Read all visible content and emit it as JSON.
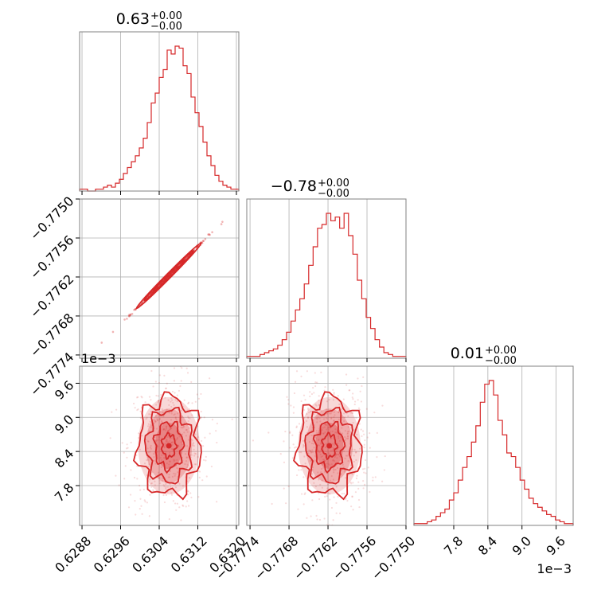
{
  "chart_data": {
    "type": "corner",
    "color": "#d62728",
    "grid": true,
    "parameters": [
      {
        "title": "0.63",
        "title_plus": "+0.00",
        "title_minus": "−0.00",
        "range": [
          0.62875,
          0.63205
        ],
        "ticks": [
          0.6288,
          0.6296,
          0.6304,
          0.6312,
          0.632
        ],
        "tick_labels": [
          "0.6288",
          "0.6296",
          "0.6304",
          "0.6312",
          "0.6320"
        ],
        "offset_text": "",
        "mean": 0.6306,
        "std": 0.00032,
        "hist_values": [
          1,
          1,
          0,
          0,
          1,
          1,
          2,
          3,
          2,
          4,
          6,
          9,
          12,
          15,
          18,
          22,
          27,
          35,
          45,
          50,
          58,
          62,
          72,
          70,
          74,
          73,
          64,
          60,
          48,
          40,
          33,
          25,
          18,
          13,
          8,
          5,
          3,
          2,
          1,
          1
        ]
      },
      {
        "title": "−0.78",
        "title_plus": "+0.00",
        "title_minus": "−0.00",
        "range": [
          -0.77745,
          -0.775
        ],
        "ticks": [
          -0.7774,
          -0.7768,
          -0.7762,
          -0.7756,
          -0.775
        ],
        "tick_labels": [
          "−0.7774",
          "−0.7768",
          "−0.7762",
          "−0.7756",
          "−0.7750"
        ],
        "offset_text": "",
        "mean": -0.77618,
        "std": 0.00024,
        "hist_values": [
          1,
          1,
          1,
          2,
          3,
          4,
          5,
          7,
          10,
          14,
          20,
          26,
          32,
          40,
          50,
          60,
          70,
          72,
          78,
          74,
          76,
          70,
          78,
          66,
          56,
          42,
          32,
          22,
          16,
          10,
          6,
          3,
          2,
          1,
          1,
          1
        ]
      },
      {
        "title": "0.01",
        "title_plus": "+0.00",
        "title_minus": "−0.00",
        "range": [
          7.1,
          9.9
        ],
        "ticks": [
          7.8,
          8.4,
          9.0,
          9.6
        ],
        "tick_labels": [
          "7.8",
          "8.4",
          "9.0",
          "9.6"
        ],
        "offset_text": "1e−3",
        "mean": 8.5,
        "std": 0.45,
        "hist_values": [
          1,
          1,
          1,
          2,
          3,
          5,
          7,
          9,
          14,
          18,
          25,
          32,
          38,
          46,
          55,
          68,
          78,
          80,
          72,
          58,
          50,
          40,
          38,
          32,
          25,
          20,
          15,
          12,
          10,
          8,
          6,
          5,
          3,
          2,
          1,
          1
        ]
      }
    ],
    "pairs": [
      {
        "x_param": 0,
        "y_param": 1,
        "correlation": 0.999
      },
      {
        "x_param": 0,
        "y_param": 2,
        "correlation": 0.0
      },
      {
        "x_param": 1,
        "y_param": 2,
        "correlation": 0.0
      }
    ]
  }
}
